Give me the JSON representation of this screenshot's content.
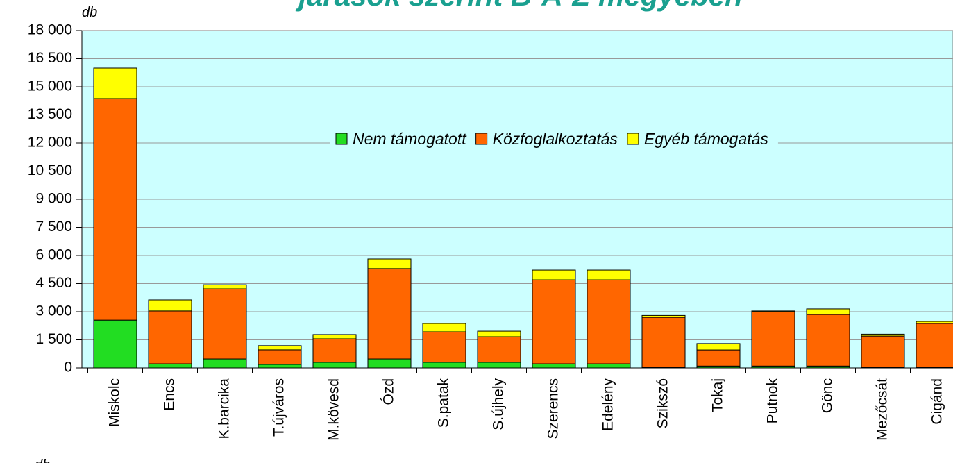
{
  "chart_data": {
    "type": "stacked_bar",
    "title": "járások szerint B-A-Z megyében",
    "y_label": "db",
    "annotations": [
      "db"
    ],
    "categories": [
      "Miskolc",
      "Encs",
      "K.barcika",
      "T.újváros",
      "M.kövesd",
      "Ózd",
      "S.patak",
      "S.újhely",
      "Szerencs",
      "Edelény",
      "Szikszó",
      "Tokaj",
      "Putnok",
      "Gönc",
      "Mezőcsát",
      "Cigánd"
    ],
    "series": [
      {
        "name": "Nem támogatott",
        "color": "#22dd22",
        "values": [
          2550,
          220,
          480,
          185,
          300,
          480,
          300,
          300,
          220,
          220,
          30,
          100,
          100,
          100,
          30,
          30
        ]
      },
      {
        "name": "Közfoglalkoztatás",
        "color": "#ff6600",
        "values": [
          11820,
          2820,
          3740,
          780,
          1255,
          4820,
          1625,
          1365,
          4480,
          4480,
          2670,
          860,
          2900,
          2750,
          1670,
          2340
        ]
      },
      {
        "name": "Egyéb támogatás",
        "color": "#ffff00",
        "values": [
          1630,
          590,
          220,
          225,
          225,
          515,
          445,
          295,
          520,
          520,
          100,
          340,
          40,
          300,
          100,
          110
        ]
      }
    ],
    "ylim": [
      0,
      18000
    ],
    "yticks": [
      0,
      {
        "value": 1500,
        "label": "1 500"
      },
      {
        "value": 3000,
        "label": "3 000"
      },
      {
        "value": 4500,
        "label": "4 500"
      },
      {
        "value": 6000,
        "label": "6 000"
      },
      {
        "value": 7500,
        "label": "7 500"
      },
      {
        "value": 9000,
        "label": "9 000"
      },
      {
        "value": 10500,
        "label": "10 500"
      },
      {
        "value": 12000,
        "label": "12 000"
      },
      {
        "value": 13500,
        "label": "13 500"
      },
      {
        "value": 15000,
        "label": "15 000"
      },
      {
        "value": 16500,
        "label": "16 500"
      },
      {
        "value": 18000,
        "label": "18 000"
      }
    ],
    "grid": true,
    "legend": "top-right"
  }
}
